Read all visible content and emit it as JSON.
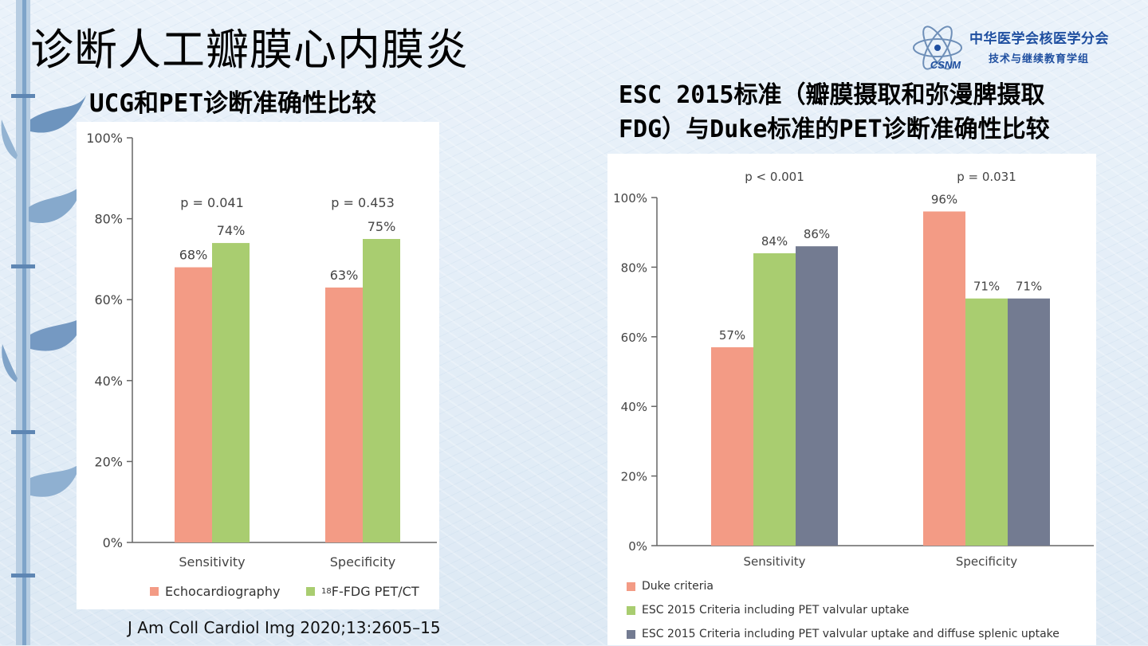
{
  "slide": {
    "title": "诊断人工瓣膜心内膜炎",
    "left_subtitle": "UCG和PET诊断准确性比较",
    "right_subtitle_line1": "ESC 2015标准（瓣膜摄取和弥漫脾摄取",
    "right_subtitle_line2": "FDG）与Duke标准的PET诊断准确性比较",
    "citation": "J Am Coll Cardiol Img 2020;13:2605–15",
    "logo": {
      "line1": "中华医学会核医学分会",
      "line2": "技术与继续教育学组",
      "emblem_text": "CSNM"
    }
  },
  "chart_data": [
    {
      "type": "bar",
      "categories": [
        "Sensitivity",
        "Specificity"
      ],
      "series": [
        {
          "name": "Echocardiography",
          "values": [
            68,
            63
          ],
          "color": "#f39b85"
        },
        {
          "name_prefix_sup": "18",
          "name": "F-FDG PET/CT",
          "values": [
            74,
            75
          ],
          "color": "#a9cd70"
        }
      ],
      "value_labels": [
        [
          "68%",
          "74%"
        ],
        [
          "63%",
          "75%"
        ]
      ],
      "pvalues": [
        "p = 0.041",
        "p = 0.453"
      ],
      "yticks": [
        "0%",
        "20%",
        "40%",
        "60%",
        "80%",
        "100%"
      ],
      "ylim": [
        0,
        100
      ],
      "legend_position": "bottom"
    },
    {
      "type": "bar",
      "categories": [
        "Sensitivity",
        "Specificity"
      ],
      "series": [
        {
          "name": "Duke criteria",
          "values": [
            57,
            96
          ],
          "color": "#f39b85"
        },
        {
          "name": "ESC 2015 Criteria including PET valvular uptake",
          "values": [
            84,
            71
          ],
          "color": "#a9cd70"
        },
        {
          "name": "ESC 2015 Criteria including PET valvular uptake and diffuse splenic uptake",
          "values": [
            86,
            71
          ],
          "color": "#737b91"
        }
      ],
      "value_labels": [
        [
          "57%",
          "84%",
          "86%"
        ],
        [
          "96%",
          "71%",
          "71%"
        ]
      ],
      "pvalues": [
        "p < 0.001",
        "p = 0.031"
      ],
      "yticks": [
        "0%",
        "20%",
        "40%",
        "60%",
        "80%",
        "100%"
      ],
      "ylim": [
        0,
        100
      ],
      "legend_position": "bottom"
    }
  ]
}
